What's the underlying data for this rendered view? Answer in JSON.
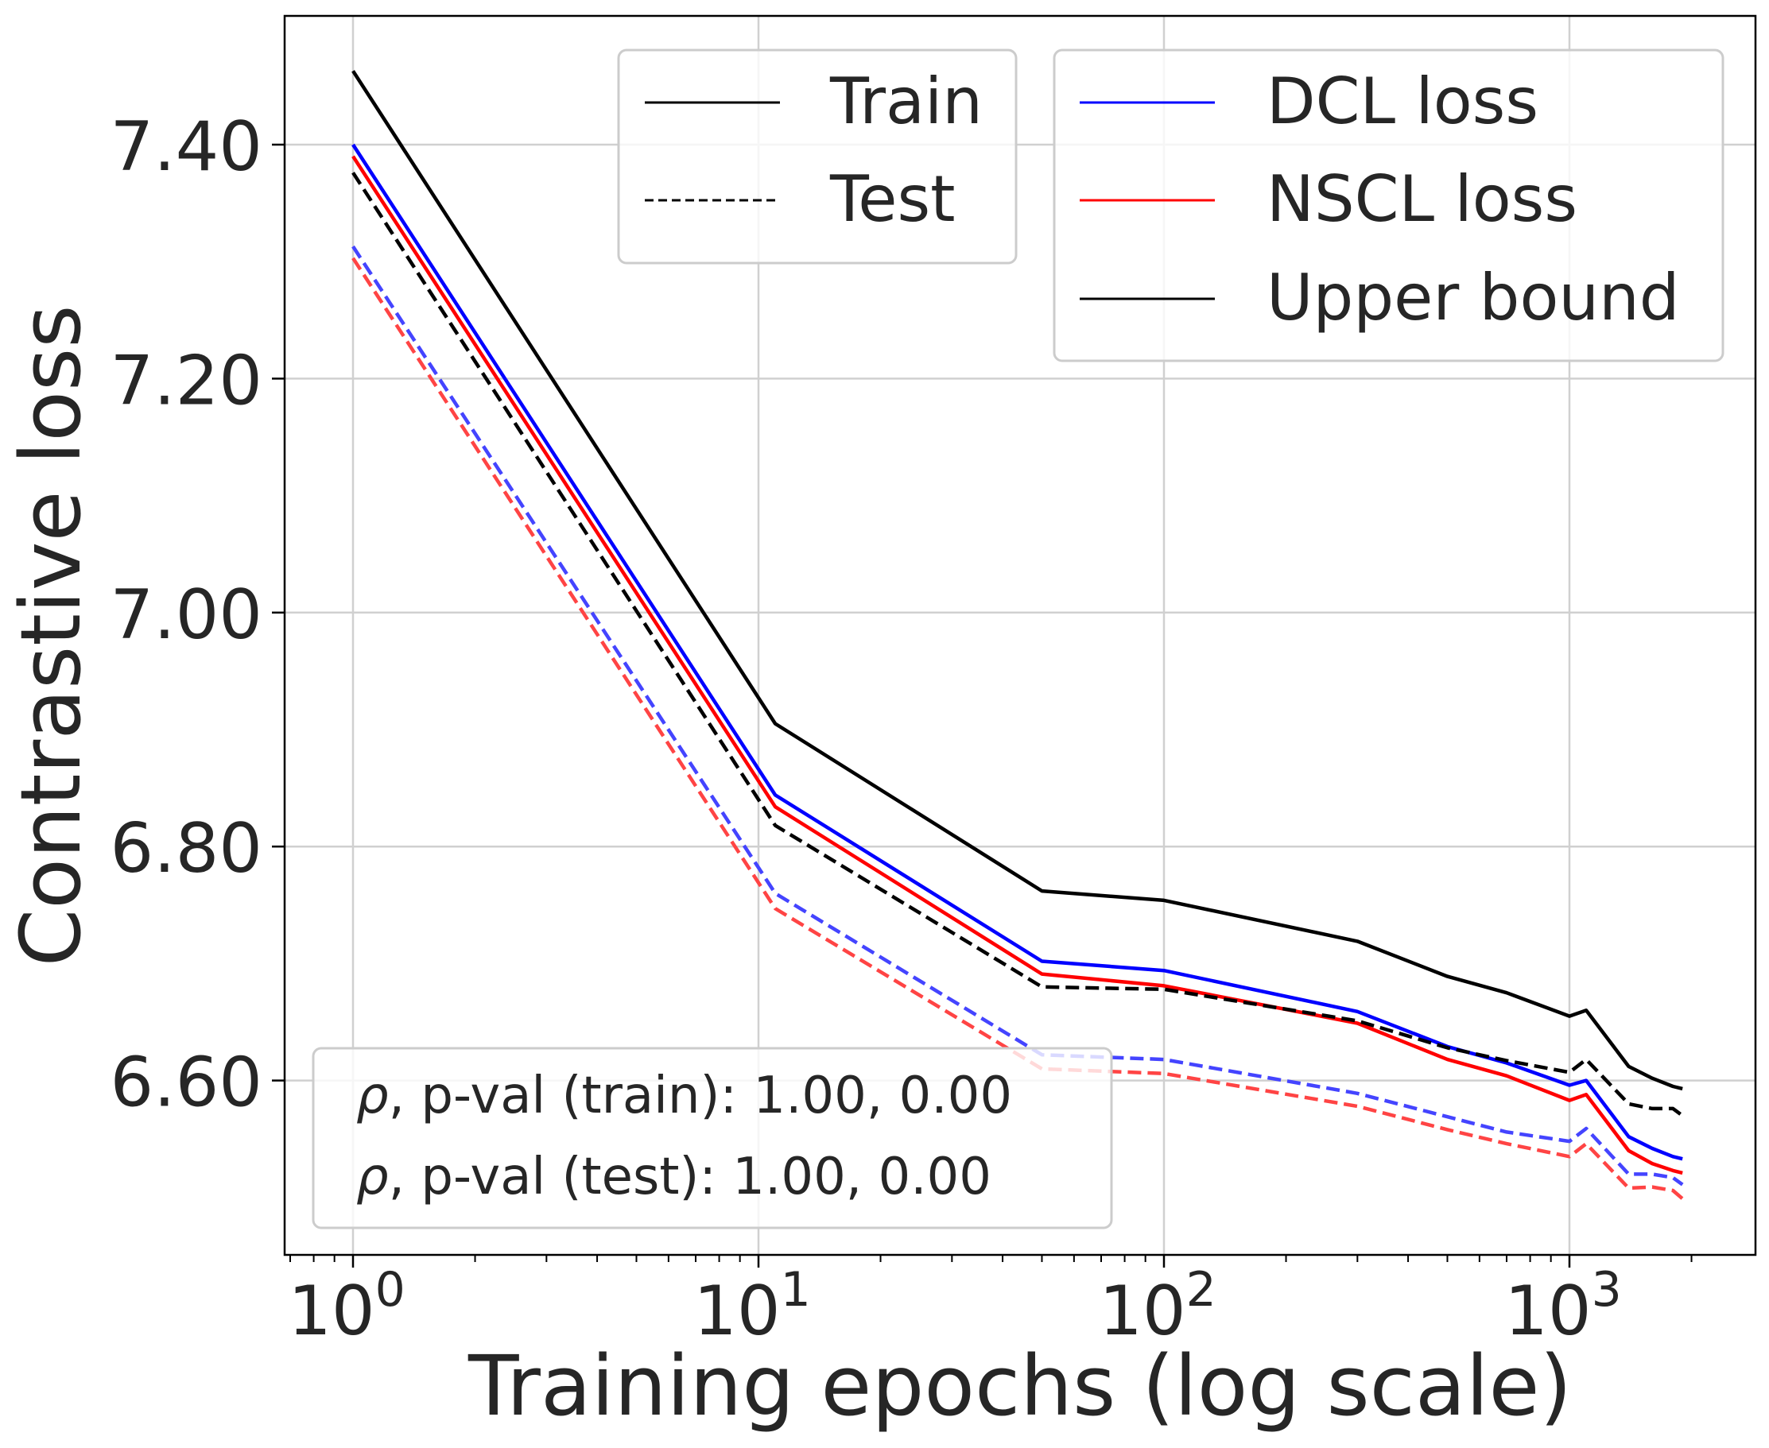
{
  "chart_data": {
    "type": "line",
    "title": "",
    "xlabel": "Training epochs (log scale)",
    "ylabel": "Contrastive loss",
    "xscale": "log",
    "xlim": [
      0.68,
      2880
    ],
    "ylim": [
      6.485,
      7.51
    ],
    "grid": true,
    "x_tick_labels": [
      {
        "base": "10",
        "exp": "0",
        "value": 1
      },
      {
        "base": "10",
        "exp": "1",
        "value": 10
      },
      {
        "base": "10",
        "exp": "2",
        "value": 100
      },
      {
        "base": "10",
        "exp": "3",
        "value": 1000
      }
    ],
    "y_ticks": [
      6.6,
      6.8,
      7.0,
      7.2,
      7.4
    ],
    "y_tick_labels": [
      "6.60",
      "6.80",
      "7.00",
      "7.20",
      "7.40"
    ],
    "x": [
      1,
      11,
      50,
      100,
      300,
      500,
      700,
      1000,
      1100,
      1400,
      1600,
      1800,
      1900
    ],
    "series": [
      {
        "key": "upper-train",
        "color": "#000000",
        "dash": false,
        "values": [
          7.463,
          6.905,
          6.762,
          6.754,
          6.719,
          6.689,
          6.675,
          6.655,
          6.66,
          6.612,
          6.602,
          6.595,
          6.593
        ]
      },
      {
        "key": "dcl-train",
        "color": "#0000ff",
        "dash": false,
        "values": [
          7.4,
          6.844,
          6.702,
          6.694,
          6.659,
          6.629,
          6.615,
          6.596,
          6.6,
          6.552,
          6.542,
          6.535,
          6.533
        ]
      },
      {
        "key": "nscl-train",
        "color": "#ff0000",
        "dash": false,
        "values": [
          7.39,
          6.834,
          6.691,
          6.681,
          6.649,
          6.618,
          6.604,
          6.583,
          6.588,
          6.54,
          6.529,
          6.523,
          6.521
        ]
      },
      {
        "key": "upper-test",
        "color": "#000000",
        "dash": true,
        "values": [
          7.376,
          6.818,
          6.68,
          6.678,
          6.651,
          6.628,
          6.617,
          6.607,
          6.618,
          6.58,
          6.576,
          6.576,
          6.57
        ]
      },
      {
        "key": "dcl-test",
        "color": "#4444ff",
        "dash": true,
        "values": [
          7.313,
          6.76,
          6.622,
          6.618,
          6.589,
          6.569,
          6.556,
          6.548,
          6.559,
          6.52,
          6.52,
          6.517,
          6.511
        ]
      },
      {
        "key": "nscl-test",
        "color": "#ff4444",
        "dash": true,
        "values": [
          7.303,
          6.747,
          6.61,
          6.606,
          6.578,
          6.558,
          6.546,
          6.535,
          6.546,
          6.508,
          6.509,
          6.506,
          6.499
        ]
      }
    ],
    "legend_style": {
      "placement": "top-right",
      "entries": [
        "Train",
        "Test"
      ]
    },
    "legend_loss": {
      "placement": "top-right",
      "entries": [
        "DCL loss",
        "NSCL loss",
        "Upper bound"
      ],
      "colors": [
        "#0000ff",
        "#ff0000",
        "#000000"
      ]
    },
    "annotations": {
      "placement": "bottom-left",
      "symbol": "ρ",
      "train": ", p-val (train):  1.00, 0.00",
      "test": ", p-val (test):  1.00, 0.00"
    }
  }
}
